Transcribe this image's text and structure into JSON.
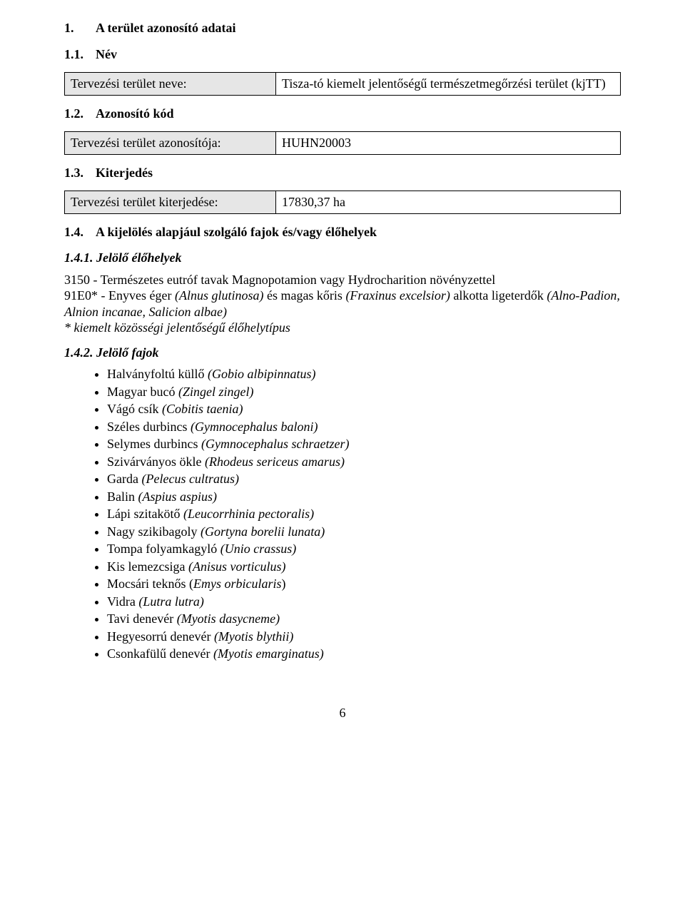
{
  "section1": {
    "num": "1.",
    "title": "A terület azonosító adatai"
  },
  "s11": {
    "num": "1.1.",
    "title": "Név",
    "row_label": "Tervezési terület neve:",
    "row_value": "Tisza-tó kiemelt jelentőségű természetmegőrzési terület (kjTT)"
  },
  "s12": {
    "num": "1.2.",
    "title": "Azonosító kód",
    "row_label": "Tervezési terület azonosítója:",
    "row_value": "HUHN20003"
  },
  "s13": {
    "num": "1.3.",
    "title": "Kiterjedés",
    "row_label": "Tervezési terület kiterjedése:",
    "row_value": "17830,37 ha"
  },
  "s14": {
    "num": "1.4.",
    "title": "A kijelölés alapjául szolgáló fajok és/vagy élőhelyek"
  },
  "s141": {
    "heading": "1.4.1. Jelölő élőhelyek",
    "line1": "3150 - Természetes eutróf tavak Magnopotamion vagy Hydrocharition növényzettel",
    "line2a": "91E0* - Enyves éger ",
    "line2b": "(Alnus glutinosa)",
    "line2c": " és magas kőris ",
    "line2d": "(Fraxinus excelsior)",
    "line2e": " alkotta ligeterdők ",
    "line2f": "(Alno-Padion, Alnion incanae, Salicion albae)",
    "footnote": "* kiemelt közösségi jelentőségű élőhelytípus"
  },
  "s142": {
    "heading": "1.4.2. Jelölő fajok",
    "items": [
      {
        "name": "Halványfoltú küllő ",
        "latin": "(Gobio albipinnatus)"
      },
      {
        "name": "Magyar bucó ",
        "latin": "(Zingel zingel)"
      },
      {
        "name": "Vágó csík ",
        "latin": "(Cobitis taenia)"
      },
      {
        "name": "Széles durbincs ",
        "latin": "(Gymnocephalus baloni)"
      },
      {
        "name": "Selymes durbincs ",
        "latin": "(Gymnocephalus schraetzer)"
      },
      {
        "name": "Szivárványos ökle ",
        "latin": "(Rhodeus sericeus amarus)"
      },
      {
        "name": "Garda ",
        "latin": "(Pelecus cultratus)"
      },
      {
        "name": "Balin ",
        "latin": "(Aspius aspius)"
      },
      {
        "name": "Lápi szitakötő ",
        "latin": "(Leucorrhinia pectoralis)"
      },
      {
        "name": "Nagy szikibagoly ",
        "latin": "(Gortyna borelii lunata)"
      },
      {
        "name": "Tompa folyamkagyló ",
        "latin": "(Unio crassus)"
      },
      {
        "name": "Kis lemezcsiga ",
        "latin": "(Anisus vorticulus)"
      },
      {
        "name": "Mocsári teknős (",
        "latin": "Emys orbicularis",
        "suffix": ")"
      },
      {
        "name": "Vidra ",
        "latin": "(Lutra lutra)"
      },
      {
        "name": "Tavi denevér ",
        "latin": "(Myotis dasycneme)"
      },
      {
        "name": "Hegyesorrú denevér ",
        "latin": "(Myotis blythii)"
      },
      {
        "name": "Csonkafülű denevér ",
        "latin": "(Myotis emarginatus)"
      }
    ]
  },
  "page_number": "6"
}
